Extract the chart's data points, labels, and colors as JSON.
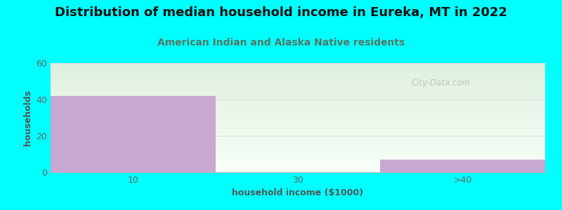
{
  "title": "Distribution of median household income in Eureka, MT in 2022",
  "subtitle": "American Indian and Alaska Native residents",
  "xlabel": "household income ($1000)",
  "ylabel": "households",
  "background_color": "#00FFFF",
  "plot_bg_color_topleft": "#dff0df",
  "plot_bg_color_bottomright": "#f8fff8",
  "bar_color": "#c8a8d0",
  "categories": [
    "10",
    "30",
    ">40"
  ],
  "values": [
    42,
    0,
    7
  ],
  "ylim": [
    0,
    60
  ],
  "yticks": [
    0,
    20,
    40,
    60
  ],
  "title_fontsize": 13,
  "subtitle_fontsize": 10,
  "subtitle_color": "#557766",
  "tick_color": "#666666",
  "axis_label_fontsize": 9,
  "watermark": "City-Data.com"
}
